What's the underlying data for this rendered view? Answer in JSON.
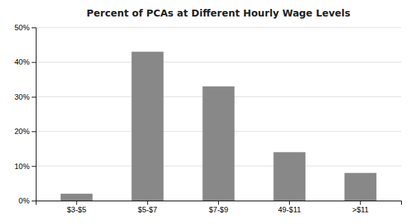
{
  "chart_data": {
    "type": "bar",
    "title": "Percent of PCAs at Different Hourly Wage Levels",
    "categories": [
      "$3-$5",
      "$5-$7",
      "$7-$9",
      "49-$11",
      ">$11"
    ],
    "values": [
      2,
      43,
      33,
      14,
      8
    ],
    "color": "#888888",
    "ylim": [
      0,
      50
    ],
    "yticks": [
      {
        "value": 0,
        "label": "0%"
      },
      {
        "value": 10,
        "label": "10%"
      },
      {
        "value": 20,
        "label": "20%"
      },
      {
        "value": 30,
        "label": "30%"
      },
      {
        "value": 40,
        "label": "40%"
      },
      {
        "value": 50,
        "label": "50%"
      }
    ],
    "grid": true
  }
}
